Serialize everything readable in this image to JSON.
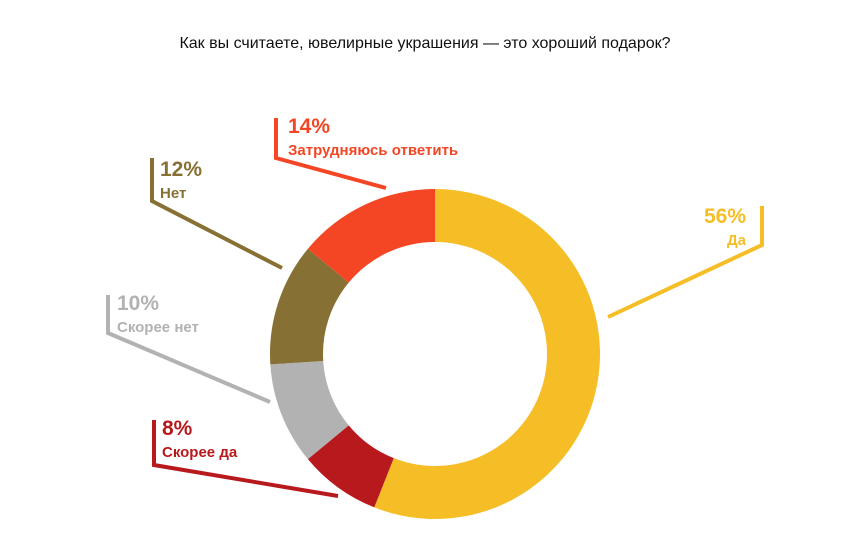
{
  "chart_data": {
    "type": "pie",
    "title": "Как вы считаете, ювелирные украшения — это хороший подарок?",
    "slices": [
      {
        "label": "Да",
        "value": 56,
        "value_label": "56%",
        "color": "#F6BE26"
      },
      {
        "label": "Скорее да",
        "value": 8,
        "value_label": "8%",
        "color": "#B7191C"
      },
      {
        "label": "Скорее нет",
        "value": 10,
        "value_label": "10%",
        "color": "#B2B2B2"
      },
      {
        "label": "Нет",
        "value": 12,
        "value_label": "12%",
        "color": "#877033"
      },
      {
        "label": "Затрудняюсь ответить",
        "value": 14,
        "value_label": "14%",
        "color": "#F44624"
      }
    ]
  }
}
